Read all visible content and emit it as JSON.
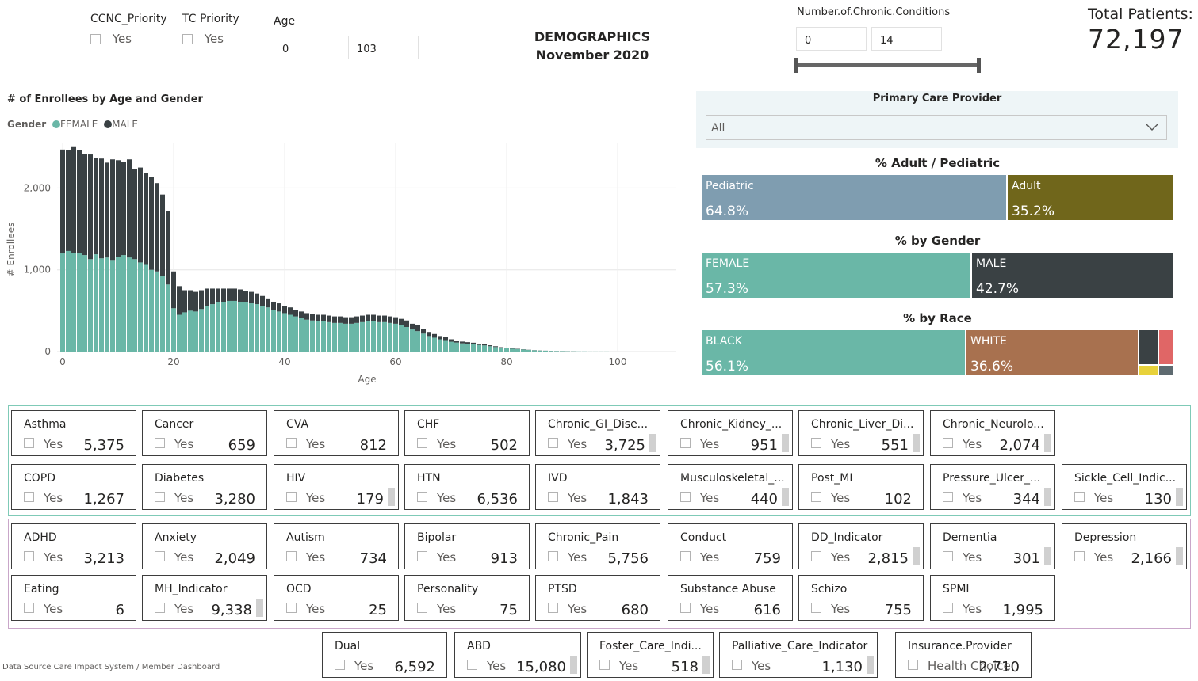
{
  "filters": {
    "ccnc": {
      "label": "CCNC_Priority",
      "option": "Yes"
    },
    "tc": {
      "label": "TC Priority",
      "option": "Yes"
    },
    "age": {
      "label": "Age",
      "min": "0",
      "max": "103"
    },
    "chronic": {
      "label": "Number.of.Chronic.Conditions",
      "min": "0",
      "max": "14"
    }
  },
  "header": {
    "title": "DEMOGRAPHICS",
    "subtitle": "November 2020"
  },
  "total": {
    "label": "Total Patients:",
    "value": "72,197"
  },
  "pcp": {
    "label": "Primary Care Provider",
    "value": "All"
  },
  "adult_ped": {
    "title": "% Adult / Pediatric",
    "segments": [
      {
        "label": "Pediatric",
        "pct": "64.8%",
        "color": "#7f9db0"
      },
      {
        "label": "Adult",
        "pct": "35.2%",
        "color": "#70661b"
      }
    ]
  },
  "gender": {
    "title": "% by Gender",
    "segments": [
      {
        "label": "FEMALE",
        "pct": "57.3%",
        "color": "#6ab7a7"
      },
      {
        "label": "MALE",
        "pct": "42.7%",
        "color": "#3a4144"
      }
    ]
  },
  "race": {
    "title": "% by Race",
    "segments": [
      {
        "label": "BLACK",
        "pct": "56.1%",
        "color": "#6ab7a7"
      },
      {
        "label": "WHITE",
        "pct": "36.6%",
        "color": "#a8714f"
      }
    ],
    "small_colors": [
      "#3a4144",
      "#e06666",
      "#e8d23b",
      "#5e6a70"
    ]
  },
  "chart_data": {
    "type": "bar",
    "title": "# of Enrollees by Age and Gender",
    "legend_title": "Gender",
    "xlabel": "Age",
    "ylabel": "# Enrollees",
    "x_ticks": [
      "0",
      "20",
      "40",
      "60",
      "80",
      "100"
    ],
    "y_ticks": [
      "0",
      "1,000",
      "2,000"
    ],
    "ylim": [
      0,
      2500
    ],
    "xlim": [
      -1,
      110
    ],
    "legend_placement": "top-left",
    "stacked": true,
    "ages": [
      0,
      1,
      2,
      3,
      4,
      5,
      6,
      7,
      8,
      9,
      10,
      11,
      12,
      13,
      14,
      15,
      16,
      17,
      18,
      19,
      20,
      21,
      22,
      23,
      24,
      25,
      26,
      27,
      28,
      29,
      30,
      31,
      32,
      33,
      34,
      35,
      36,
      37,
      38,
      39,
      40,
      41,
      42,
      43,
      44,
      45,
      46,
      47,
      48,
      49,
      50,
      51,
      52,
      53,
      54,
      55,
      56,
      57,
      58,
      59,
      60,
      61,
      62,
      63,
      64,
      65,
      66,
      67,
      68,
      69,
      70,
      71,
      72,
      73,
      74,
      75,
      76,
      77,
      78,
      79,
      80,
      81,
      82,
      83,
      84,
      85,
      86,
      87,
      88,
      89,
      90,
      91,
      92,
      93,
      94,
      95,
      96,
      97,
      98,
      99,
      100,
      101,
      102,
      103
    ],
    "series": [
      {
        "name": "FEMALE",
        "color": "#6ab7a7",
        "values": [
          1200,
          1230,
          1210,
          1200,
          1180,
          1130,
          1190,
          1140,
          1150,
          1120,
          1160,
          1180,
          1150,
          1130,
          1090,
          1060,
          1000,
          980,
          920,
          820,
          530,
          450,
          480,
          500,
          490,
          520,
          560,
          580,
          600,
          610,
          620,
          620,
          610,
          600,
          590,
          580,
          560,
          540,
          510,
          490,
          470,
          450,
          430,
          410,
          390,
          380,
          370,
          370,
          360,
          350,
          350,
          340,
          340,
          350,
          360,
          370,
          370,
          360,
          360,
          350,
          340,
          320,
          300,
          270,
          250,
          220,
          190,
          170,
          150,
          140,
          120,
          110,
          100,
          95,
          90,
          80,
          75,
          65,
          55,
          45,
          40,
          35,
          30,
          25,
          20,
          15,
          12,
          10,
          8,
          6,
          5,
          4,
          3,
          2,
          2,
          1,
          1,
          1,
          1,
          0,
          0,
          0,
          0,
          0
        ]
      },
      {
        "name": "MALE",
        "color": "#3a4144",
        "values": [
          1270,
          1230,
          1290,
          1260,
          1240,
          1280,
          1180,
          1220,
          1160,
          1230,
          1180,
          1140,
          1200,
          1100,
          1160,
          1120,
          1130,
          1080,
          1000,
          900,
          450,
          350,
          270,
          250,
          240,
          230,
          210,
          190,
          170,
          160,
          150,
          150,
          150,
          140,
          140,
          130,
          120,
          110,
          100,
          100,
          90,
          90,
          80,
          80,
          80,
          80,
          80,
          80,
          80,
          80,
          80,
          80,
          80,
          80,
          80,
          80,
          80,
          80,
          80,
          80,
          80,
          80,
          80,
          70,
          70,
          60,
          50,
          45,
          40,
          35,
          30,
          25,
          22,
          20,
          18,
          16,
          14,
          12,
          10,
          8,
          6,
          5,
          4,
          3,
          2,
          2,
          2,
          1,
          1,
          1,
          1,
          1,
          1,
          0,
          0,
          0,
          0,
          0,
          0,
          0,
          0,
          0,
          0,
          0
        ]
      }
    ]
  },
  "physical": [
    {
      "name": "Asthma",
      "count": "5,375"
    },
    {
      "name": "Cancer",
      "count": "659"
    },
    {
      "name": "CVA",
      "count": "812"
    },
    {
      "name": "CHF",
      "count": "502"
    },
    {
      "name": "Chronic_GI_Dise...",
      "count": "3,725",
      "scroll": true
    },
    {
      "name": "Chronic_Kidney_...",
      "count": "951",
      "scroll": true
    },
    {
      "name": "Chronic_Liver_Di...",
      "count": "551",
      "scroll": true
    },
    {
      "name": "Chronic_Neurolo...",
      "count": "2,074",
      "scroll": true
    },
    {
      "name": "COPD",
      "count": "1,267"
    },
    {
      "name": "Diabetes",
      "count": "3,280"
    },
    {
      "name": "HIV",
      "count": "179",
      "scroll": true
    },
    {
      "name": "HTN",
      "count": "6,536"
    },
    {
      "name": "IVD",
      "count": "1,843"
    },
    {
      "name": "Musculoskeletal_...",
      "count": "440",
      "scroll": true
    },
    {
      "name": "Post_MI",
      "count": "102"
    },
    {
      "name": "Pressure_Ulcer_...",
      "count": "344",
      "scroll": true
    },
    {
      "name": "Sickle_Cell_Indic...",
      "count": "130",
      "scroll": true
    }
  ],
  "behavioral": [
    {
      "name": "ADHD",
      "count": "3,213"
    },
    {
      "name": "Anxiety",
      "count": "2,049"
    },
    {
      "name": "Autism",
      "count": "734"
    },
    {
      "name": "Bipolar",
      "count": "913"
    },
    {
      "name": "Chronic_Pain",
      "count": "5,756"
    },
    {
      "name": "Conduct",
      "count": "759"
    },
    {
      "name": "DD_Indicator",
      "count": "2,815",
      "scroll": true
    },
    {
      "name": "Dementia",
      "count": "301",
      "scroll": true
    },
    {
      "name": "Depression",
      "count": "2,166",
      "scroll": true
    },
    {
      "name": "Eating",
      "count": "6"
    },
    {
      "name": "MH_Indicator",
      "count": "9,338",
      "scroll": true
    },
    {
      "name": "OCD",
      "count": "25"
    },
    {
      "name": "Personality",
      "count": "75"
    },
    {
      "name": "PTSD",
      "count": "680"
    },
    {
      "name": "Substance Abuse",
      "count": "616"
    },
    {
      "name": "Schizo",
      "count": "755"
    },
    {
      "name": "SPMI",
      "count": "1,995"
    }
  ],
  "bottom": [
    {
      "name": "Dual",
      "option": "Yes",
      "count": "6,592"
    },
    {
      "name": "ABD",
      "option": "Yes",
      "count": "15,080",
      "scroll": true
    },
    {
      "name": "Foster_Care_Indi...",
      "option": "Yes",
      "count": "518",
      "scroll": true
    },
    {
      "name": "Palliative_Care_Indicator",
      "option": "Yes",
      "count": "1,130",
      "scroll": true
    },
    {
      "name": "Insurance.Provider",
      "option": "Health Choice",
      "count": "2,710"
    }
  ],
  "tile_option": "Yes",
  "footer": "Data Source Care Impact System / Member Dashboard"
}
